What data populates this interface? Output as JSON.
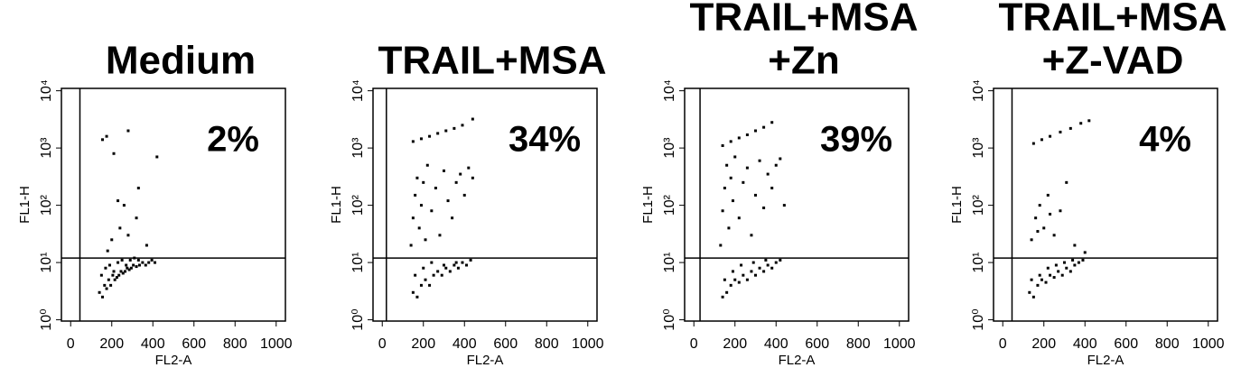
{
  "chart_data": [
    {
      "type": "scatter",
      "title": [
        "Medium"
      ],
      "annotation": "2%",
      "xlabel": "FL2-A",
      "ylabel": "FL1-H",
      "log_y": true,
      "color": "#000000",
      "xlim": [
        -45,
        1045
      ],
      "ylim": [
        0.95,
        11000
      ],
      "xticks": [
        0,
        200,
        400,
        600,
        800,
        1000
      ],
      "yticks": [
        {
          "value": 1,
          "label": "10⁰"
        },
        {
          "value": 10,
          "label": "10¹"
        },
        {
          "value": 100,
          "label": "10²"
        },
        {
          "value": 1000,
          "label": "10³"
        },
        {
          "value": 10000,
          "label": "10⁴"
        }
      ],
      "gate": {
        "x": 45,
        "y": 12
      },
      "x": [
        140,
        155,
        165,
        175,
        185,
        195,
        205,
        215,
        225,
        235,
        245,
        255,
        265,
        275,
        285,
        295,
        305,
        320,
        335,
        350,
        365,
        380,
        395,
        410,
        150,
        170,
        190,
        210,
        230,
        250,
        270,
        290,
        310,
        330,
        180,
        200,
        240,
        280,
        320,
        370,
        155,
        175,
        210,
        260,
        330,
        420,
        280,
        230
      ],
      "y": [
        3,
        2.5,
        4,
        3.5,
        5,
        4,
        6,
        5,
        5.5,
        6,
        7,
        6.5,
        7,
        8,
        7.5,
        8,
        9,
        8.5,
        9,
        10,
        9,
        10,
        11,
        10,
        6,
        8,
        9,
        7,
        10,
        11,
        9,
        11,
        12,
        11,
        16,
        25,
        40,
        30,
        60,
        20,
        1400,
        1600,
        800,
        100,
        200,
        700,
        2000,
        120
      ]
    },
    {
      "type": "scatter",
      "title": [
        "TRAIL+MSA"
      ],
      "annotation": "34%",
      "xlabel": "FL2-A",
      "ylabel": "FL1-H",
      "log_y": true,
      "color": "#000000",
      "xlim": [
        -45,
        1045
      ],
      "ylim": [
        0.95,
        11000
      ],
      "xticks": [
        0,
        200,
        400,
        600,
        800,
        1000
      ],
      "yticks": [
        {
          "value": 1,
          "label": "10⁰"
        },
        {
          "value": 10,
          "label": "10¹"
        },
        {
          "value": 100,
          "label": "10²"
        },
        {
          "value": 1000,
          "label": "10³"
        },
        {
          "value": 10000,
          "label": "10⁴"
        }
      ],
      "gate": {
        "x": 20,
        "y": 12
      },
      "x": [
        150,
        170,
        190,
        210,
        230,
        250,
        270,
        290,
        310,
        330,
        350,
        370,
        390,
        410,
        430,
        160,
        200,
        240,
        300,
        360,
        140,
        150,
        160,
        170,
        180,
        190,
        200,
        220,
        240,
        260,
        280,
        300,
        320,
        340,
        360,
        380,
        400,
        420,
        440,
        210,
        150,
        190,
        230,
        270,
        310,
        350,
        390,
        440
      ],
      "y": [
        3,
        2.5,
        4,
        5,
        4,
        6,
        7,
        6,
        8,
        7,
        9,
        8,
        10,
        9,
        11,
        6,
        8,
        10,
        9,
        10,
        20,
        60,
        150,
        300,
        40,
        100,
        250,
        500,
        80,
        200,
        30,
        400,
        120,
        60,
        250,
        350,
        150,
        450,
        300,
        25,
        1300,
        1450,
        1600,
        1800,
        2000,
        2200,
        2500,
        3200
      ]
    },
    {
      "type": "scatter",
      "title": [
        "TRAIL+MSA",
        "+Zn"
      ],
      "annotation": "39%",
      "xlabel": "FL2-A",
      "ylabel": "FL1-H",
      "log_y": true,
      "color": "#000000",
      "xlim": [
        -45,
        1045
      ],
      "ylim": [
        0.95,
        11000
      ],
      "xticks": [
        0,
        200,
        400,
        600,
        800,
        1000
      ],
      "yticks": [
        {
          "value": 1,
          "label": "10⁰"
        },
        {
          "value": 10,
          "label": "10¹"
        },
        {
          "value": 100,
          "label": "10²"
        },
        {
          "value": 1000,
          "label": "10³"
        },
        {
          "value": 10000,
          "label": "10⁴"
        }
      ],
      "gate": {
        "x": 30,
        "y": 12
      },
      "x": [
        140,
        160,
        180,
        200,
        220,
        240,
        260,
        280,
        300,
        320,
        340,
        360,
        380,
        400,
        420,
        150,
        190,
        230,
        290,
        350,
        130,
        140,
        150,
        160,
        170,
        180,
        190,
        200,
        220,
        240,
        260,
        280,
        300,
        320,
        340,
        360,
        380,
        400,
        420,
        440,
        140,
        180,
        220,
        260,
        300,
        340,
        380
      ],
      "y": [
        2.5,
        3,
        4,
        5,
        4.5,
        6,
        5,
        7,
        6,
        8,
        7,
        9,
        8,
        10,
        11,
        5,
        7,
        9,
        10,
        11,
        20,
        80,
        200,
        500,
        40,
        300,
        120,
        700,
        60,
        250,
        450,
        30,
        150,
        600,
        90,
        350,
        200,
        500,
        650,
        100,
        1100,
        1300,
        1500,
        1700,
        2000,
        2300,
        2800
      ]
    },
    {
      "type": "scatter",
      "title": [
        "TRAIL+MSA",
        "+Z-VAD"
      ],
      "annotation": "4%",
      "xlabel": "FL2-A",
      "ylabel": "FL1-H",
      "log_y": true,
      "color": "#000000",
      "xlim": [
        -45,
        1045
      ],
      "ylim": [
        0.95,
        11000
      ],
      "xticks": [
        0,
        200,
        400,
        600,
        800,
        1000
      ],
      "yticks": [
        {
          "value": 1,
          "label": "10⁰"
        },
        {
          "value": 10,
          "label": "10¹"
        },
        {
          "value": 100,
          "label": "10²"
        },
        {
          "value": 1000,
          "label": "10³"
        },
        {
          "value": 10000,
          "label": "10⁴"
        }
      ],
      "gate": {
        "x": 45,
        "y": 12
      },
      "x": [
        130,
        150,
        170,
        190,
        210,
        230,
        250,
        270,
        290,
        310,
        330,
        350,
        370,
        390,
        140,
        180,
        220,
        260,
        300,
        340,
        140,
        160,
        180,
        200,
        220,
        250,
        280,
        310,
        350,
        400,
        170,
        230,
        150,
        190,
        230,
        280,
        330,
        380,
        420
      ],
      "y": [
        3,
        2.5,
        4,
        5,
        4.5,
        6,
        5.5,
        7,
        6,
        8,
        7,
        9,
        10,
        11,
        5,
        6,
        8,
        9,
        10,
        11,
        25,
        60,
        100,
        40,
        150,
        30,
        80,
        250,
        20,
        15,
        35,
        70,
        1200,
        1400,
        1600,
        1900,
        2200,
        2700,
        3000
      ]
    }
  ]
}
